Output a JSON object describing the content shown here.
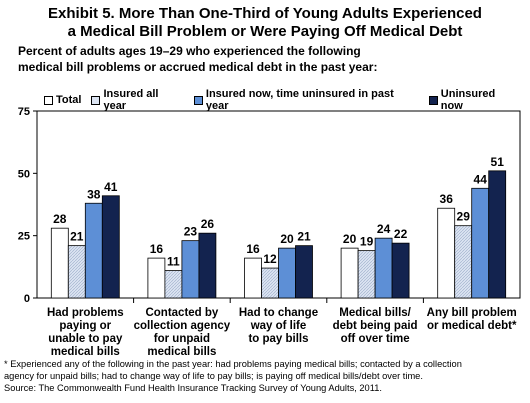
{
  "header": {
    "title_line1": "Exhibit 5. More Than One-Third of Young Adults Experienced",
    "title_line2": "a Medical Bill Problem or Were Paying Off Medical Debt",
    "subtitle_line1": "Percent of adults ages 19–29 who experienced the following",
    "subtitle_line2": "medical bill problems or accrued medical debt in the past year:"
  },
  "colors": {
    "total": "#ffffff",
    "insured_all_year": "#dce4f2",
    "insured_now": "#5d8fd6",
    "uninsured_now": "#13234f"
  },
  "chart_data": {
    "type": "bar",
    "categories": [
      [
        "Had problems",
        "paying or",
        "unable to pay",
        "medical bills"
      ],
      [
        "Contacted by",
        "collection agency",
        "for unpaid",
        "medical bills"
      ],
      [
        "Had to change",
        "way of life",
        "to pay bills"
      ],
      [
        "Medical bills/",
        "debt being paid",
        "off over time"
      ],
      [
        "Any bill problem",
        "or medical debt*"
      ]
    ],
    "series": [
      {
        "name": "Total",
        "values": [
          28,
          16,
          16,
          20,
          36
        ]
      },
      {
        "name": "Insured all year",
        "values": [
          21,
          11,
          12,
          19,
          29
        ]
      },
      {
        "name": "Insured now, time uninsured in past year",
        "values": [
          38,
          23,
          20,
          24,
          44
        ]
      },
      {
        "name": "Uninsured now",
        "values": [
          41,
          26,
          21,
          22,
          51
        ]
      }
    ],
    "yticks": [
      0,
      25,
      50,
      75
    ],
    "ylim": [
      0,
      75
    ],
    "legend_position": "top"
  },
  "footnote": {
    "line1": "* Experienced any of the following in the past year: had problems paying medical bills; contacted by a collection",
    "line2": "agency for unpaid bills; had to change way of life to pay bills; is paying off medical bills/debt over time.",
    "line3": "Source: The Commonwealth Fund Health Insurance Tracking Survey of Young  Adults, 2011."
  }
}
